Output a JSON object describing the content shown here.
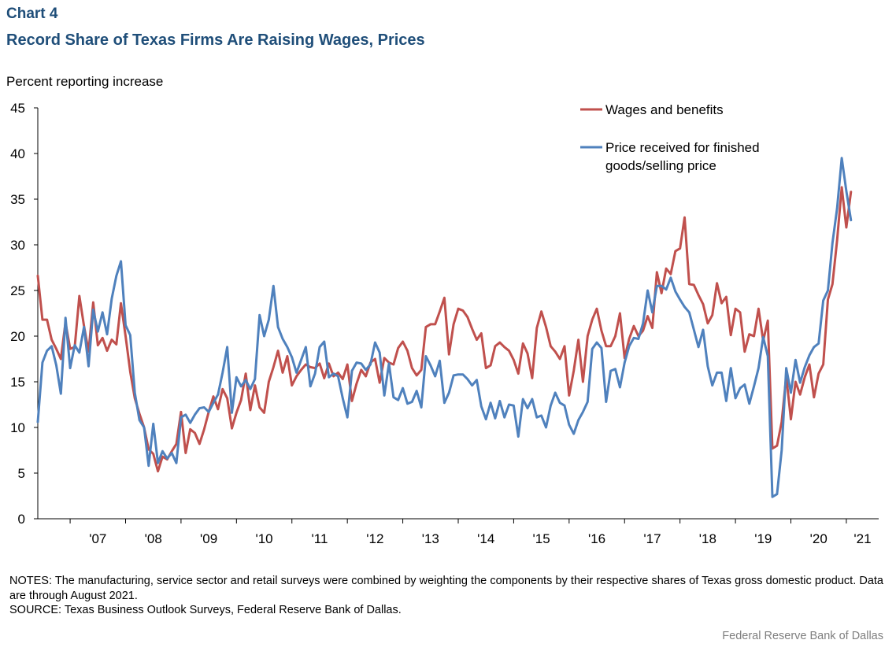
{
  "header": {
    "chart_label": "Chart 4",
    "title": "Record Share of Texas Firms Are Raising Wages, Prices"
  },
  "colors": {
    "wages": "#c0504d",
    "prices": "#4f81bd",
    "title": "#1f4e79",
    "credit": "#7f7f7f"
  },
  "chart_data": {
    "type": "line",
    "ylabel": "Percent reporting increase",
    "ylim": [
      0,
      45
    ],
    "yticks": [
      0,
      5,
      10,
      15,
      20,
      25,
      30,
      35,
      40,
      45
    ],
    "x_tick_labels": [
      "'07",
      "'08",
      "'09",
      "'10",
      "'11",
      "'12",
      "'13",
      "'14",
      "'15",
      "'16",
      "'17",
      "'18",
      "'19",
      "'20",
      "'21"
    ],
    "x_start": "2006-06",
    "x_end": "2021-08",
    "grid": false,
    "legend_position": "top-right",
    "series": [
      {
        "name": "Wages and benefits",
        "color": "#c0504d",
        "values": [
          26.6,
          21.8,
          21.8,
          19.6,
          18.6,
          17.5,
          21.5,
          18.6,
          18.8,
          24.4,
          21.1,
          18.3,
          23.7,
          19.0,
          19.8,
          18.4,
          19.6,
          19.1,
          23.6,
          20.0,
          16.1,
          13.2,
          11.5,
          10.0,
          7.6,
          7.1,
          5.2,
          6.8,
          6.5,
          7.4,
          8.2,
          11.7,
          7.2,
          9.8,
          9.4,
          8.2,
          9.8,
          11.7,
          13.4,
          12.0,
          14.2,
          13.2,
          9.9,
          11.6,
          13.0,
          15.9,
          11.9,
          14.6,
          12.2,
          11.6,
          15.0,
          16.6,
          18.4,
          16.0,
          17.8,
          14.6,
          15.6,
          16.3,
          16.9,
          16.6,
          16.5,
          17.0,
          15.4,
          17.0,
          15.6,
          16.0,
          15.3,
          16.9,
          12.9,
          14.8,
          16.3,
          15.6,
          17.1,
          17.5,
          14.9,
          17.6,
          17.1,
          16.9,
          18.7,
          19.4,
          18.4,
          16.5,
          15.7,
          16.3,
          21.0,
          21.3,
          21.3,
          22.7,
          24.2,
          18.0,
          21.3,
          23.0,
          22.8,
          22.1,
          20.8,
          19.6,
          20.3,
          16.5,
          16.8,
          18.9,
          19.3,
          18.8,
          18.4,
          17.4,
          15.9,
          19.2,
          18.1,
          15.4,
          20.9,
          22.7,
          21.0,
          18.9,
          18.3,
          17.5,
          18.9,
          13.5,
          16.2,
          19.6,
          15.0,
          20.0,
          21.8,
          23.0,
          20.6,
          18.9,
          18.9,
          20.0,
          22.5,
          17.6,
          19.7,
          21.1,
          20.0,
          20.6,
          22.2,
          20.9,
          27.0,
          24.7,
          27.4,
          26.8,
          29.3,
          29.6,
          33.0,
          25.7,
          25.6,
          24.5,
          23.5,
          21.4,
          22.3,
          25.8,
          23.6,
          24.3,
          20.1,
          23.0,
          22.6,
          18.3,
          20.2,
          20.0,
          23.0,
          19.5,
          21.7,
          7.7,
          8.0,
          10.6,
          15.6,
          10.9,
          15.0,
          13.6,
          15.5,
          16.9,
          13.3,
          15.9,
          16.9,
          24.0,
          25.7,
          30.5,
          36.3,
          31.9,
          35.8
        ]
      },
      {
        "name": "Price received for finished goods/selling price",
        "color": "#4f81bd",
        "values": [
          10.6,
          17.1,
          18.4,
          18.9,
          16.8,
          13.7,
          22.0,
          16.5,
          19.0,
          18.2,
          21.0,
          16.7,
          22.9,
          20.5,
          22.6,
          20.2,
          24.1,
          26.6,
          28.2,
          21.2,
          20.1,
          13.8,
          10.8,
          10.0,
          5.8,
          10.4,
          6.1,
          7.4,
          6.6,
          7.2,
          6.1,
          11.1,
          11.4,
          10.5,
          11.4,
          12.1,
          12.2,
          11.7,
          12.7,
          13.6,
          16.0,
          18.8,
          11.6,
          15.5,
          14.5,
          15.2,
          14.2,
          15.3,
          22.3,
          20.0,
          21.8,
          25.5,
          21.0,
          19.7,
          18.8,
          17.7,
          16.0,
          17.4,
          18.8,
          14.5,
          15.9,
          18.8,
          19.4,
          15.5,
          15.9,
          15.6,
          13.2,
          11.1,
          16.2,
          17.1,
          17.0,
          16.3,
          16.9,
          19.3,
          18.2,
          13.5,
          17.0,
          13.3,
          13.0,
          14.3,
          12.6,
          12.8,
          14.0,
          12.2,
          17.8,
          16.8,
          15.6,
          17.3,
          12.7,
          13.8,
          15.7,
          15.8,
          15.8,
          15.3,
          14.6,
          15.2,
          12.3,
          10.9,
          12.7,
          11.0,
          12.9,
          11.1,
          12.5,
          12.4,
          9.0,
          13.1,
          12.1,
          13.1,
          11.1,
          11.3,
          10.0,
          12.4,
          13.8,
          12.7,
          12.4,
          10.3,
          9.3,
          10.8,
          11.7,
          12.8,
          18.6,
          19.3,
          18.7,
          12.8,
          16.2,
          16.4,
          14.4,
          17.1,
          18.9,
          19.8,
          19.7,
          21.4,
          25.0,
          22.6,
          25.5,
          25.5,
          25.1,
          26.4,
          24.9,
          24.0,
          23.2,
          22.6,
          20.7,
          18.8,
          20.7,
          16.7,
          14.6,
          16.0,
          16.0,
          12.9,
          16.5,
          13.2,
          14.3,
          14.7,
          12.6,
          14.5,
          16.5,
          19.9,
          17.8,
          2.4,
          2.7,
          7.5,
          16.5,
          13.8,
          17.4,
          14.9,
          16.6,
          17.9,
          18.8,
          19.2,
          23.9,
          25.0,
          30.2,
          34.0,
          39.5,
          35.9,
          32.7
        ]
      }
    ],
    "legend_entries": [
      "Wages and benefits",
      "Price received for finished",
      "goods/selling price"
    ]
  },
  "footer": {
    "notes_line1": "NOTES: The manufacturing, service sector and retail surveys were combined by weighting the components by their respective shares of Texas gross domestic product. Data are through August 2021.",
    "source": "SOURCE: Texas Business Outlook Surveys, Federal Reserve Bank of Dallas.",
    "credit": "Federal Reserve Bank of Dallas"
  }
}
